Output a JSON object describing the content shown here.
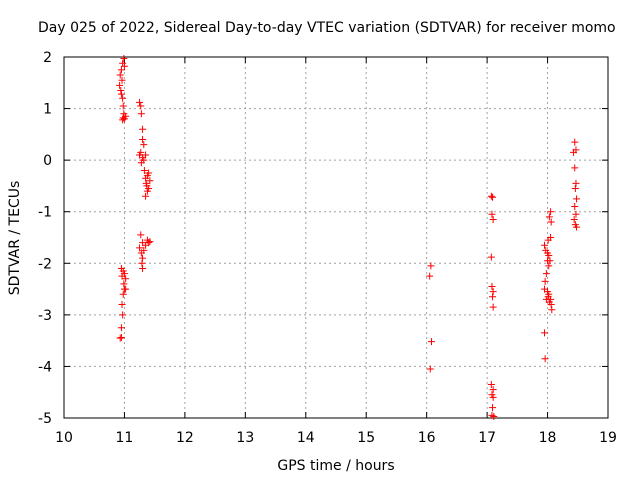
{
  "chart_data": {
    "type": "scatter",
    "title": "Day 025 of 2022, Sidereal Day-to-day VTEC variation (SDTVAR) for receiver momo",
    "xlabel": "GPS time / hours",
    "ylabel": "SDTVAR / TECUs",
    "xlim": [
      10,
      19
    ],
    "ylim": [
      -5,
      2
    ],
    "xticks": [
      "10",
      "11",
      "12",
      "13",
      "14",
      "15",
      "16",
      "17",
      "18",
      "19"
    ],
    "yticks": [
      "2",
      "1",
      "0",
      "-1",
      "-2",
      "-3",
      "-4",
      "-5"
    ],
    "grid": true,
    "marker": "+",
    "color": "#ff0000",
    "series": [
      {
        "name": "SDTVAR",
        "points": [
          [
            10.93,
            1.65
          ],
          [
            10.95,
            1.75
          ],
          [
            10.97,
            1.88
          ],
          [
            10.99,
            1.97
          ],
          [
            11.0,
            1.82
          ],
          [
            10.96,
            1.55
          ],
          [
            10.92,
            1.45
          ],
          [
            10.94,
            1.35
          ],
          [
            10.95,
            1.28
          ],
          [
            10.97,
            1.2
          ],
          [
            10.98,
            1.05
          ],
          [
            10.99,
            0.9
          ],
          [
            10.98,
            0.82
          ],
          [
            11.0,
            0.8
          ],
          [
            11.02,
            0.85
          ],
          [
            10.97,
            0.78
          ],
          [
            11.25,
            1.12
          ],
          [
            11.27,
            1.05
          ],
          [
            11.28,
            0.9
          ],
          [
            11.3,
            0.6
          ],
          [
            11.3,
            0.4
          ],
          [
            11.32,
            0.3
          ],
          [
            11.27,
            0.15
          ],
          [
            11.25,
            0.1
          ],
          [
            11.3,
            0.05
          ],
          [
            11.32,
            0.0
          ],
          [
            11.35,
            0.1
          ],
          [
            11.28,
            -0.05
          ],
          [
            11.33,
            -0.2
          ],
          [
            11.35,
            -0.35
          ],
          [
            11.38,
            -0.3
          ],
          [
            11.4,
            -0.25
          ],
          [
            11.37,
            -0.5
          ],
          [
            11.38,
            -0.6
          ],
          [
            11.4,
            -0.55
          ],
          [
            11.35,
            -0.7
          ],
          [
            11.42,
            -0.4
          ],
          [
            11.36,
            -0.45
          ],
          [
            11.27,
            -1.45
          ],
          [
            11.3,
            -1.6
          ],
          [
            11.25,
            -1.7
          ],
          [
            11.28,
            -1.8
          ],
          [
            11.3,
            -1.9
          ],
          [
            11.32,
            -1.75
          ],
          [
            11.29,
            -2.0
          ],
          [
            11.3,
            -2.1
          ],
          [
            11.38,
            -1.55
          ],
          [
            11.4,
            -1.6
          ],
          [
            11.42,
            -1.58
          ],
          [
            11.35,
            -1.65
          ],
          [
            10.95,
            -2.1
          ],
          [
            10.98,
            -2.15
          ],
          [
            11.0,
            -2.2
          ],
          [
            11.02,
            -2.3
          ],
          [
            10.96,
            -2.25
          ],
          [
            10.99,
            -2.4
          ],
          [
            11.0,
            -2.5
          ],
          [
            10.98,
            -2.6
          ],
          [
            11.02,
            -2.5
          ],
          [
            10.96,
            -2.8
          ],
          [
            10.97,
            -3.0
          ],
          [
            10.95,
            -3.25
          ],
          [
            10.93,
            -3.45
          ],
          [
            10.95,
            -3.44
          ],
          [
            16.07,
            -2.05
          ],
          [
            16.05,
            -2.25
          ],
          [
            16.08,
            -3.52
          ],
          [
            16.06,
            -4.05
          ],
          [
            17.07,
            -0.7
          ],
          [
            17.09,
            -0.72
          ],
          [
            17.08,
            -1.05
          ],
          [
            17.1,
            -1.15
          ],
          [
            17.07,
            -1.88
          ],
          [
            17.08,
            -2.45
          ],
          [
            17.1,
            -2.55
          ],
          [
            17.09,
            -2.65
          ],
          [
            17.1,
            -2.85
          ],
          [
            17.07,
            -4.35
          ],
          [
            17.1,
            -4.45
          ],
          [
            17.08,
            -4.55
          ],
          [
            17.1,
            -4.6
          ],
          [
            17.09,
            -4.8
          ],
          [
            17.08,
            -4.95
          ],
          [
            17.11,
            -4.97
          ],
          [
            17.95,
            -1.65
          ],
          [
            17.97,
            -1.75
          ],
          [
            18.0,
            -1.8
          ],
          [
            18.02,
            -1.85
          ],
          [
            18.05,
            -1.5
          ],
          [
            18.06,
            -1.2
          ],
          [
            18.05,
            -1.0
          ],
          [
            18.03,
            -1.1
          ],
          [
            18.04,
            -1.95
          ],
          [
            18.02,
            -2.05
          ],
          [
            17.98,
            -2.2
          ],
          [
            17.96,
            -2.35
          ],
          [
            17.95,
            -2.5
          ],
          [
            18.0,
            -2.55
          ],
          [
            18.02,
            -2.6
          ],
          [
            18.05,
            -2.7
          ],
          [
            18.03,
            -2.75
          ],
          [
            18.06,
            -2.8
          ],
          [
            18.07,
            -2.9
          ],
          [
            18.01,
            -2.65
          ],
          [
            17.98,
            -2.7
          ],
          [
            17.95,
            -3.35
          ],
          [
            17.96,
            -3.85
          ],
          [
            18.0,
            -1.95
          ],
          [
            18.01,
            -1.55
          ],
          [
            18.45,
            0.35
          ],
          [
            18.47,
            0.2
          ],
          [
            18.43,
            0.15
          ],
          [
            18.45,
            -0.15
          ],
          [
            18.47,
            -0.45
          ],
          [
            18.46,
            -0.55
          ],
          [
            18.48,
            -0.75
          ],
          [
            18.45,
            -0.9
          ],
          [
            18.47,
            -1.05
          ],
          [
            18.44,
            -1.15
          ],
          [
            18.46,
            -1.25
          ],
          [
            18.48,
            -1.3
          ]
        ]
      }
    ]
  }
}
